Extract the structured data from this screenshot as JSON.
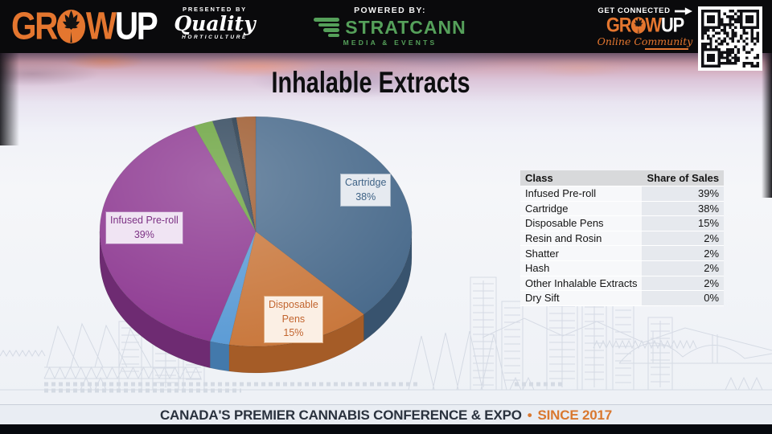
{
  "title": "Inhalable Extracts",
  "colors": {
    "brand_orange": "#e4762f",
    "stratcann_green": "#55a05a",
    "footer_navy": "#2a323e",
    "footer_orange": "#d9782f"
  },
  "header": {
    "growup": {
      "gr": "GR",
      "w": "W",
      "up": "UP"
    },
    "presented_by": "PRESENTED BY",
    "quality": "Quality",
    "horticulture": "HORTICULTURE",
    "powered_by": "POWERED BY:",
    "stratcann": "STRATCANN",
    "media_events": "MEDIA & EVENTS",
    "get_connected": "GET CONNECTED",
    "online_community": "Online Community"
  },
  "chart_data": {
    "type": "pie",
    "title": "Inhalable Extracts",
    "unit": "%",
    "style": "3d-pie",
    "start_angle_deg": 0,
    "direction": "clockwise",
    "slices": [
      {
        "label": "Cartridge",
        "value": 38,
        "color": "#4a6b8c",
        "side_color": "#38536e"
      },
      {
        "label": "Disposable Pens",
        "value": 15,
        "color": "#c9783d",
        "side_color": "#a55c27"
      },
      {
        "label": "Resin and Rosin",
        "value": 2,
        "color": "#5b9bd5",
        "side_color": "#4379ab"
      },
      {
        "label": "Infused Pre-roll",
        "value": 39,
        "color": "#8e3a92",
        "side_color": "#6e2b72"
      },
      {
        "label": "Shatter",
        "value": 2,
        "color": "#6aa33e",
        "side_color": "#527f2e"
      },
      {
        "label": "Hash",
        "value": 2,
        "color": "#31475c",
        "side_color": "#243546"
      },
      {
        "label": "Dry Sift",
        "value": 0,
        "color": "#203447",
        "side_color": "#182836"
      },
      {
        "label": "Other Inhalable Extracts",
        "value": 2,
        "color": "#9d5a2e",
        "side_color": "#7d4522"
      }
    ],
    "labels_shown": [
      "Cartridge 38%",
      "Infused Pre-roll 39%",
      "Disposable Pens 15%"
    ]
  },
  "pie_labels": {
    "cartridge": "Cartridge\n38%",
    "infused": "Infused Pre-roll\n39%",
    "disposable": "Disposable\nPens\n15%"
  },
  "table": {
    "headers": [
      "Class",
      "Share of Sales"
    ],
    "rows": [
      [
        "Infused Pre-roll",
        "39%"
      ],
      [
        "Cartridge",
        "38%"
      ],
      [
        "Disposable Pens",
        "15%"
      ],
      [
        "Resin and Rosin",
        "2%"
      ],
      [
        "Shatter",
        "2%"
      ],
      [
        "Hash",
        "2%"
      ],
      [
        "Other Inhalable Extracts",
        "2%"
      ],
      [
        "Dry Sift",
        "0%"
      ]
    ]
  },
  "footer": {
    "main": "CANADA'S PREMIER CANNABIS CONFERENCE & EXPO",
    "bullet": "•",
    "since": "SINCE 2017"
  }
}
